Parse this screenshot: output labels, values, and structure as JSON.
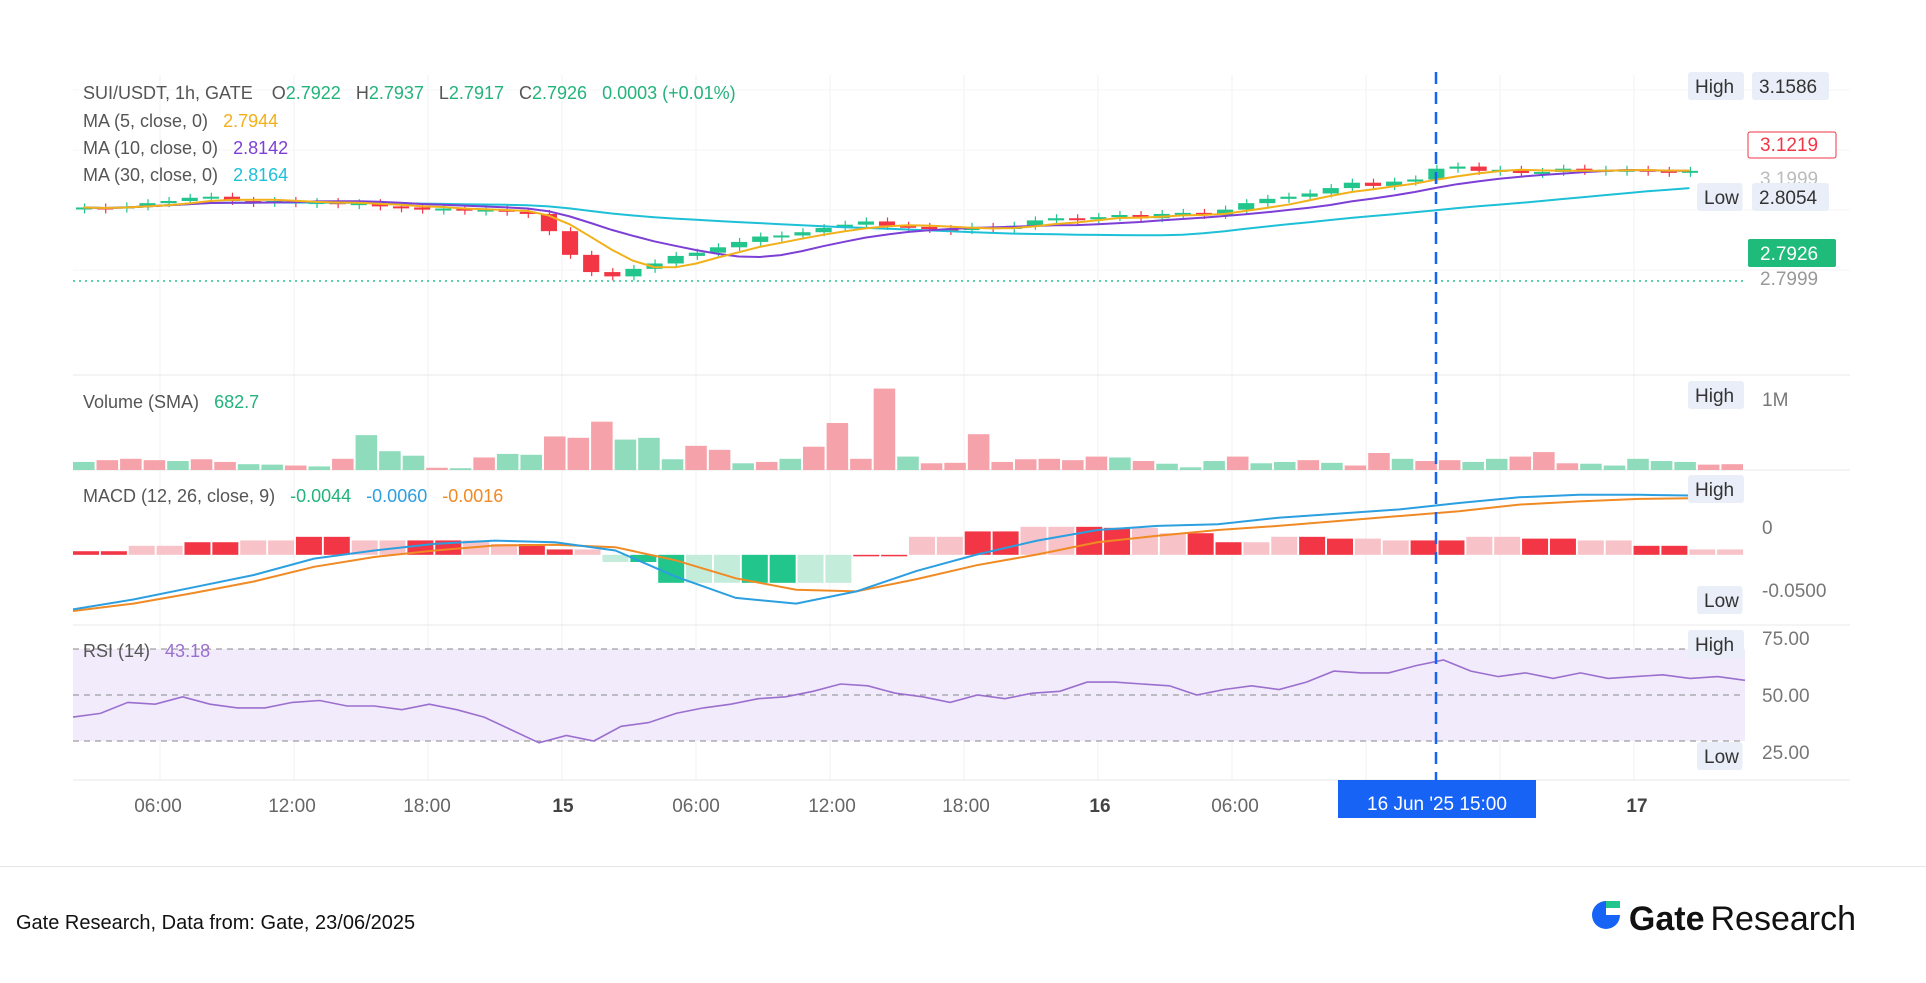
{
  "legend": {
    "symbol": "SUI/USDT, 1h, GATE",
    "o_label": "O",
    "o_val": "2.7922",
    "h_label": "H",
    "h_val": "2.7937",
    "l_label": "L",
    "l_val": "2.7917",
    "c_label": "C",
    "c_val": "2.7926",
    "change": "0.0003 (+0.01%)",
    "ma5_label": "MA (5, close, 0)",
    "ma5_val": "2.7944",
    "ma10_label": "MA (10, close, 0)",
    "ma10_val": "2.8142",
    "ma30_label": "MA (30, close, 0)",
    "ma30_val": "2.8164",
    "vol_label": "Volume (SMA)",
    "vol_val": "682.7",
    "macd_label": "MACD (12, 26, close, 9)",
    "macd_val1": "-0.0044",
    "macd_val2": "-0.0060",
    "macd_val3": "-0.0016",
    "rsi_label": "RSI (14)",
    "rsi_val": "43.18"
  },
  "price_axis": {
    "high_tag": "High",
    "high_val": "3.1586",
    "red_tag": "3.1219",
    "faded": "3.1999",
    "low_tag": "Low",
    "low_val": "2.8054",
    "current": "2.7926",
    "dotted": "2.7999"
  },
  "volume_axis": {
    "high_tag": "High",
    "val": "1M"
  },
  "macd_axis": {
    "high_tag": "High",
    "zero": "0",
    "neg": "-0.0500",
    "low_tag": "Low"
  },
  "rsi_axis": {
    "high_tag": "High",
    "v75": "75.00",
    "v50": "50.00",
    "v25": "25.00",
    "low_tag": "Low"
  },
  "time_axis": {
    "ticks": [
      "06:00",
      "12:00",
      "18:00",
      "15",
      "06:00",
      "12:00",
      "18:00",
      "16",
      "06:00",
      "17"
    ],
    "crosshair": "16 Jun '25   15:00"
  },
  "footer": "Gate Research, Data from: Gate, 23/06/2025",
  "logo": {
    "gate": "Gate",
    "research": "Research"
  },
  "colors": {
    "up": "#22c58b",
    "down": "#f23645",
    "ma5": "#f2b019",
    "ma10": "#7d3fd6",
    "ma30": "#1ec0d8",
    "macd": "#2b9fe0",
    "signal": "#f08a24",
    "rsi": "#9b6fce",
    "crosshair": "#1763f5"
  },
  "chart_data": {
    "type": "candlestick",
    "symbol": "SUI/USDT",
    "interval": "1h",
    "x_ticks": [
      "06:00",
      "12:00",
      "18:00",
      "15",
      "06:00",
      "12:00",
      "18:00",
      "16",
      "06:00",
      "17"
    ],
    "price_series": {
      "close": [
        2.802,
        2.801,
        2.803,
        2.806,
        2.808,
        2.811,
        2.812,
        2.808,
        2.807,
        2.808,
        2.806,
        2.807,
        2.805,
        2.806,
        2.803,
        2.802,
        2.8,
        2.801,
        2.799,
        2.8,
        2.798,
        2.796,
        2.78,
        2.758,
        2.742,
        2.738,
        2.745,
        2.75,
        2.757,
        2.76,
        2.765,
        2.77,
        2.775,
        2.776,
        2.779,
        2.783,
        2.786,
        2.789,
        2.785,
        2.784,
        2.782,
        2.781,
        2.784,
        2.782,
        2.785,
        2.79,
        2.792,
        2.791,
        2.793,
        2.795,
        2.792,
        2.796,
        2.797,
        2.795,
        2.8,
        2.806,
        2.81,
        2.812,
        2.815,
        2.82,
        2.825,
        2.822,
        2.826,
        2.828,
        2.838,
        2.84,
        2.836,
        2.837,
        2.834,
        2.835,
        2.838,
        2.836,
        2.837,
        2.837,
        2.836,
        2.835,
        2.836
      ],
      "ma_labels": [
        "MA (5, close, 0)",
        "MA (10, close, 0)",
        "MA (30, close, 0)"
      ]
    },
    "volume": [
      18,
      22,
      25,
      22,
      20,
      24,
      18,
      13,
      12,
      10,
      8,
      25,
      78,
      42,
      32,
      5,
      4,
      28,
      36,
      34,
      75,
      72,
      108,
      68,
      72,
      24,
      54,
      45,
      15,
      18,
      25,
      52,
      105,
      25,
      182,
      30,
      15,
      16,
      80,
      18,
      24,
      25,
      22,
      30,
      28,
      20,
      14,
      6,
      20,
      30,
      15,
      18,
      22,
      16,
      10,
      38,
      25,
      20,
      22,
      18,
      25,
      30,
      40,
      15,
      14,
      10,
      25,
      20,
      18,
      12,
      13
    ],
    "macd": {
      "macd": [
        -0.052,
        -0.04,
        -0.025,
        -0.01,
        0.01,
        0.02,
        0.028,
        0.032,
        0.03,
        0.02,
        -0.012,
        -0.038,
        -0.045,
        -0.03,
        -0.005,
        0.015,
        0.032,
        0.045,
        0.05,
        0.052,
        0.06,
        0.065,
        0.07,
        0.078,
        0.085,
        0.088,
        0.088,
        0.087
      ],
      "signal": [
        -0.054,
        -0.045,
        -0.032,
        -0.018,
        0.0,
        0.012,
        0.02,
        0.026,
        0.027,
        0.024,
        0.008,
        -0.014,
        -0.028,
        -0.03,
        -0.015,
        0.002,
        0.015,
        0.03,
        0.038,
        0.045,
        0.05,
        0.056,
        0.062,
        0.068,
        0.076,
        0.08,
        0.083,
        0.084
      ]
    },
    "rsi": [
      38,
      40,
      46,
      45,
      49,
      45,
      43,
      43,
      46,
      47,
      44,
      44,
      42,
      45,
      42,
      38,
      31,
      24,
      28,
      25,
      33,
      35,
      40,
      43,
      45,
      48,
      49,
      52,
      56,
      55,
      51,
      49,
      46,
      50,
      48,
      51,
      52,
      57,
      57,
      56,
      55,
      50,
      53,
      55,
      53,
      57,
      63,
      62,
      62,
      66,
      69,
      63,
      60,
      62,
      59,
      62,
      59,
      60,
      61,
      59,
      60,
      58
    ],
    "rsi_levels": [
      75,
      50,
      25
    ]
  }
}
